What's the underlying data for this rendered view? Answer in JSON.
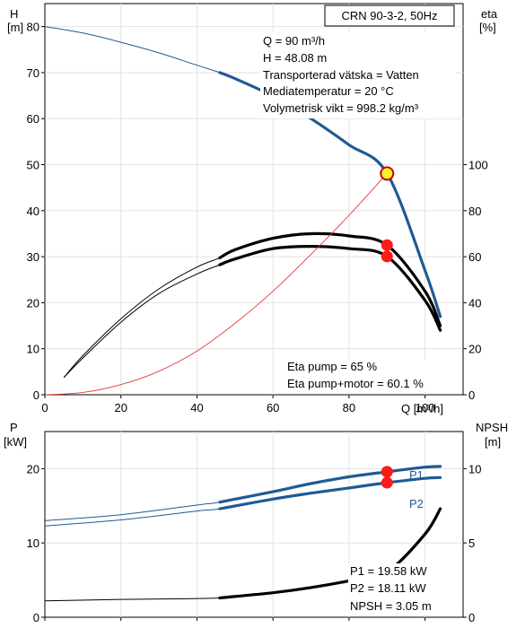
{
  "chart_data": [
    {
      "type": "line",
      "title": "CRN 90-3-2, 50Hz",
      "x_axis": {
        "label": "Q [m³/h]",
        "range": [
          0,
          110
        ],
        "ticks": [
          0,
          20,
          40,
          60,
          80,
          100
        ]
      },
      "y_left": {
        "label_top": "H",
        "label_unit": "[m]",
        "range": [
          0,
          85
        ],
        "ticks": [
          0,
          10,
          20,
          30,
          40,
          50,
          60,
          70,
          80
        ]
      },
      "y_right": {
        "label_top": "eta",
        "label_unit": "[%]",
        "range": [
          0,
          170
        ],
        "ticks": [
          0,
          20,
          40,
          60,
          80,
          100
        ]
      },
      "info_lines": [
        "Q = 90 m³/h",
        "H = 48.08 m",
        "Transporterad vätska = Vatten",
        "Mediatemperatur = 20 °C",
        "Volymetrisk vikt = 998.2 kg/m³"
      ],
      "bottom_lines": [
        "Eta pump = 65 %",
        "Eta pump+motor = 60.1 %"
      ],
      "series": [
        {
          "axis": "left",
          "color": "#1f5a94",
          "x": [
            0,
            10,
            20,
            30,
            40,
            46,
            50,
            60,
            70,
            80,
            90,
            100,
            104
          ],
          "y": [
            80,
            78.6,
            76.6,
            74.3,
            71.6,
            70,
            68.7,
            64.9,
            60.0,
            54.3,
            48.1,
            27,
            17
          ]
        },
        {
          "axis": "right",
          "color": "#000000",
          "x": [
            5,
            10,
            20,
            30,
            40,
            46,
            50,
            60,
            70,
            80,
            90,
            100,
            104
          ],
          "y": [
            7.5,
            17,
            33,
            46,
            55.5,
            59.5,
            63,
            68,
            70,
            69,
            65,
            45,
            30
          ]
        },
        {
          "axis": "right",
          "color": "#000000",
          "x": [
            5,
            10,
            20,
            30,
            40,
            46,
            50,
            60,
            70,
            80,
            90,
            100,
            104
          ],
          "y": [
            7.5,
            16,
            31.5,
            44,
            52.5,
            56.5,
            59,
            63.5,
            64.5,
            63.5,
            60.1,
            41,
            28
          ]
        },
        {
          "axis": "left",
          "color": "#e53a3a",
          "x": [
            0,
            10,
            20,
            30,
            40,
            50,
            60,
            70,
            80,
            90
          ],
          "y": [
            0,
            0.5,
            2.2,
            5.1,
            9.5,
            15.5,
            22.5,
            30.5,
            39,
            48.08
          ]
        }
      ],
      "markers": [
        {
          "x": 90,
          "y": 48.08,
          "axis": "left",
          "fill": "#f5f52a",
          "stroke": "#cc0000"
        },
        {
          "x": 90,
          "y": 65,
          "axis": "right",
          "fill": "#ff1a1a",
          "stroke": "#ff1a1a"
        },
        {
          "x": 90,
          "y": 60.1,
          "axis": "right",
          "fill": "#ff1a1a",
          "stroke": "#ff1a1a"
        }
      ]
    },
    {
      "type": "line",
      "x_axis": {
        "range": [
          0,
          110
        ],
        "ticks": [
          0,
          20,
          40,
          60,
          80,
          100
        ]
      },
      "y_left": {
        "label_top": "P",
        "label_unit": "[kW]",
        "range": [
          0,
          25
        ],
        "ticks": [
          0,
          10,
          20
        ]
      },
      "y_right": {
        "label_top": "NPSH",
        "label_unit": "[m]",
        "range": [
          0,
          12.5
        ],
        "ticks": [
          0,
          5,
          10
        ]
      },
      "bottom_lines": [
        "P1 = 19.58 kW",
        "P2 = 18.11 kW",
        "NPSH = 3.05 m"
      ],
      "series": [
        {
          "name": "P1",
          "axis": "left",
          "color": "#1f5a94",
          "x": [
            0,
            20,
            40,
            46,
            60,
            70,
            80,
            90,
            100,
            104
          ],
          "y": [
            13,
            13.8,
            15.1,
            15.5,
            16.9,
            18.0,
            18.9,
            19.58,
            20.2,
            20.3
          ]
        },
        {
          "name": "P2",
          "axis": "left",
          "color": "#1f5a94",
          "x": [
            0,
            20,
            40,
            46,
            60,
            70,
            80,
            90,
            100,
            104
          ],
          "y": [
            12.3,
            13.1,
            14.3,
            14.6,
            15.9,
            16.7,
            17.4,
            18.11,
            18.7,
            18.8
          ]
        },
        {
          "axis": "right",
          "color": "#000000",
          "x": [
            0,
            20,
            46,
            60,
            70,
            80,
            90,
            100,
            104
          ],
          "y": [
            1.1,
            1.2,
            1.3,
            1.65,
            2.0,
            2.45,
            3.05,
            5.6,
            7.3
          ]
        }
      ],
      "markers": [
        {
          "x": 90,
          "y": 19.58,
          "axis": "left",
          "fill": "#ff1a1a",
          "stroke": "#ff1a1a"
        },
        {
          "x": 90,
          "y": 18.11,
          "axis": "left",
          "fill": "#ff1a1a",
          "stroke": "#ff1a1a"
        },
        {
          "x": 90,
          "y": 3.05,
          "axis": "right",
          "fill": "#ff1a1a",
          "stroke": "#ff1a1a"
        }
      ]
    }
  ]
}
